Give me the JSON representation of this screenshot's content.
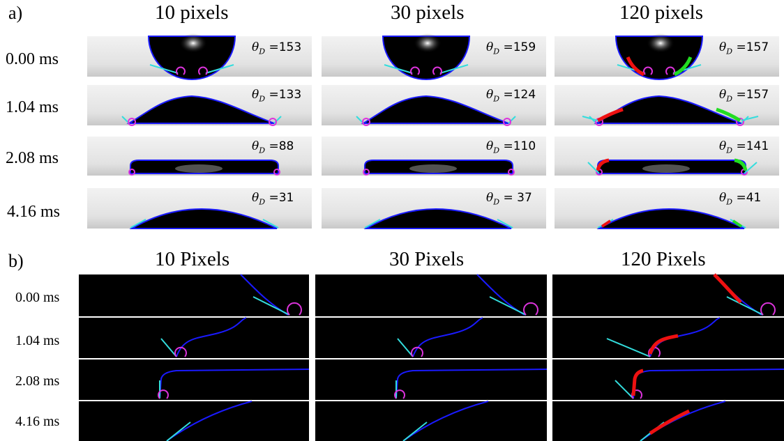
{
  "panel_a": {
    "label": "a)",
    "columns": [
      "10 pixels",
      "30 pixels",
      "120 pixels"
    ],
    "rows": [
      {
        "time": "0.00 ms",
        "angles": [
          "=153",
          "=159",
          "=157"
        ]
      },
      {
        "time": "1.04 ms",
        "angles": [
          "=133",
          "=124",
          "=157"
        ]
      },
      {
        "time": "2.08 ms",
        "angles": [
          "=88",
          "=110",
          "=141"
        ]
      },
      {
        "time": "4.16 ms",
        "angles": [
          "=31",
          "= 37",
          "=41"
        ]
      }
    ],
    "angle_symbol": "θ",
    "angle_subscript": "D"
  },
  "panel_b": {
    "label": "b)",
    "columns": [
      "10 Pixels",
      "30 Pixels",
      "120 Pixels"
    ],
    "rows": [
      {
        "time": "0.00 ms"
      },
      {
        "time": "1.04 ms"
      },
      {
        "time": "2.08 ms"
      },
      {
        "time": "4.16 ms"
      }
    ]
  },
  "colors": {
    "droplet": "#000000",
    "contour": "#1a1aff",
    "tangent": "#33dddd",
    "arc": "#dd33dd",
    "fit_left": "#ee1111",
    "fit_right": "#22dd22",
    "background_a": "#e8e8e8",
    "background_b": "#000000"
  }
}
